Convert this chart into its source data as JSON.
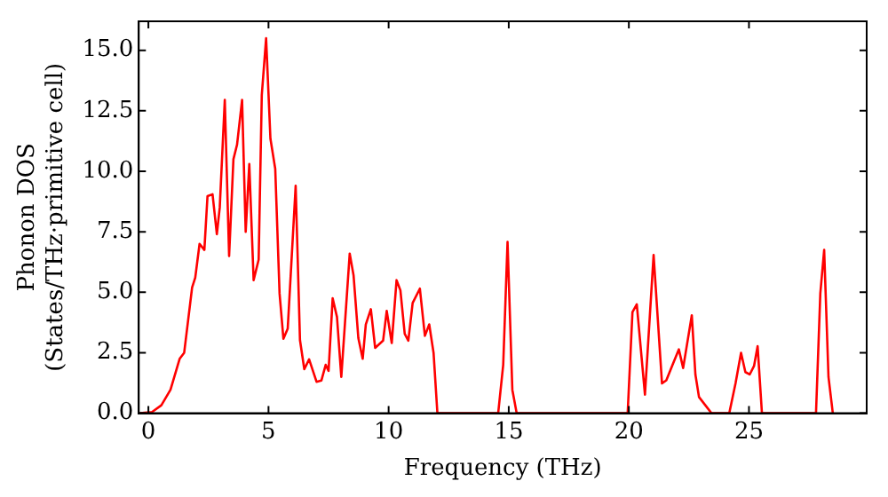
{
  "chart_data": {
    "type": "line",
    "xlabel": "Frequency (THz)",
    "ylabel": "Phonon DOS\n(States/THz·primitive cell)",
    "x": [
      -0.36,
      0.15,
      0.54,
      0.92,
      1.3,
      1.49,
      1.82,
      1.95,
      2.13,
      2.33,
      2.46,
      2.67,
      2.85,
      2.97,
      3.18,
      3.36,
      3.54,
      3.69,
      3.9,
      4.05,
      4.2,
      4.38,
      4.59,
      4.72,
      4.9,
      5.08,
      5.28,
      5.46,
      5.62,
      5.8,
      6.13,
      6.31,
      6.49,
      6.69,
      7.0,
      7.2,
      7.38,
      7.5,
      7.67,
      7.85,
      8.03,
      8.38,
      8.54,
      8.74,
      8.92,
      9.05,
      9.26,
      9.44,
      9.77,
      9.92,
      10.13,
      10.33,
      10.49,
      10.67,
      10.82,
      11.0,
      11.3,
      11.51,
      11.69,
      11.87,
      12.03,
      14.56,
      14.77,
      14.95,
      15.15,
      15.33,
      19.95,
      20.15,
      20.33,
      20.67,
      21.03,
      21.38,
      21.56,
      21.82,
      22.08,
      22.26,
      22.62,
      22.77,
      22.92,
      23.44,
      24.18,
      24.44,
      24.67,
      24.85,
      25.03,
      25.21,
      25.36,
      25.54,
      27.79,
      27.97,
      28.13,
      28.31,
      28.49
    ],
    "series": [
      {
        "color": "#ff0000",
        "values": [
          0,
          0.05,
          0.33,
          0.97,
          2.25,
          2.5,
          5.2,
          5.6,
          7.0,
          6.75,
          8.97,
          9.05,
          7.4,
          8.5,
          12.95,
          6.5,
          10.5,
          11.1,
          12.95,
          7.5,
          10.3,
          5.5,
          6.35,
          13.15,
          15.5,
          11.35,
          10.1,
          4.95,
          3.08,
          3.5,
          9.4,
          3.02,
          1.82,
          2.23,
          1.3,
          1.35,
          2.0,
          1.75,
          4.75,
          3.98,
          1.5,
          6.6,
          5.7,
          3.1,
          2.25,
          3.67,
          4.3,
          2.7,
          3.0,
          4.23,
          2.9,
          5.5,
          5.08,
          3.28,
          3.0,
          4.56,
          5.15,
          3.2,
          3.67,
          2.5,
          0,
          0,
          2.0,
          7.08,
          0.97,
          0,
          0,
          4.18,
          4.5,
          0.77,
          6.54,
          1.23,
          1.36,
          2.0,
          2.64,
          1.87,
          4.05,
          1.6,
          0.67,
          0,
          0,
          1.23,
          2.5,
          1.7,
          1.6,
          1.95,
          2.77,
          0,
          0,
          4.95,
          6.75,
          1.5,
          0
        ]
      }
    ],
    "xlim": [
      -0.4,
      29.9
    ],
    "xticks": [
      0,
      5,
      10,
      15,
      20,
      25
    ],
    "ylim": [
      0,
      16.2
    ],
    "yticks": [
      {
        "value": 0,
        "label": "0.0"
      },
      {
        "value": 2.5,
        "label": "2.5"
      },
      {
        "value": 5,
        "label": "5.0"
      },
      {
        "value": 7.5,
        "label": "7.5"
      },
      {
        "value": 10,
        "label": "10.0"
      },
      {
        "value": 12.5,
        "label": "12.5"
      },
      {
        "value": 15,
        "label": "15.0"
      }
    ],
    "grid": false,
    "legend": false,
    "marker": "none",
    "line_style": "solid"
  }
}
